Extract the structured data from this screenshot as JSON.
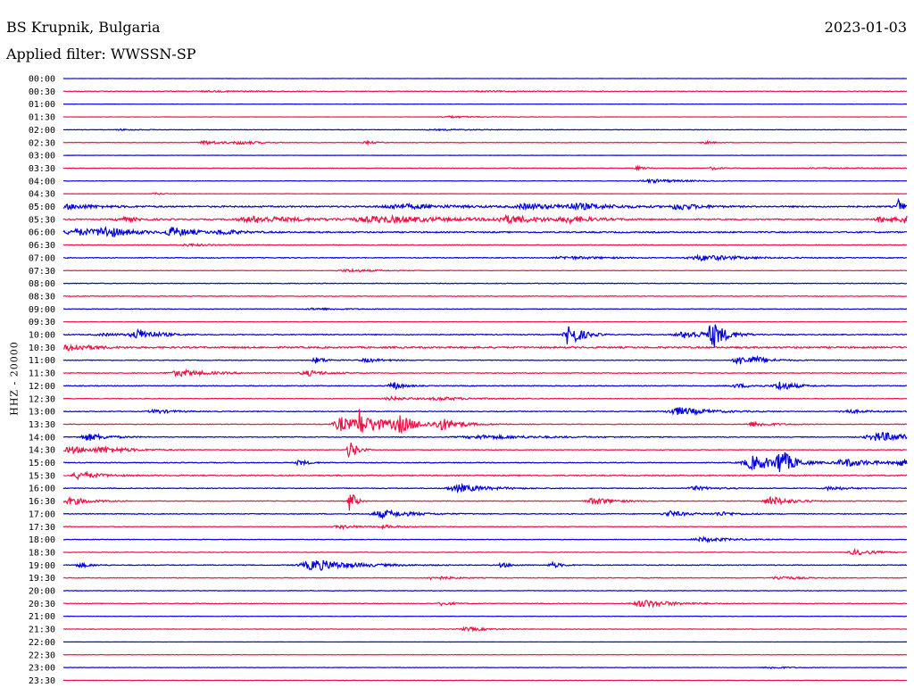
{
  "header": {
    "station": "BS Krupnik, Bulgaria",
    "date": "2023-01-03",
    "filter": "Applied filter: WWSSN-SP",
    "channel": "HHZ - 20000"
  },
  "colors": {
    "blue": "#0000dd",
    "red": "#ee1144"
  },
  "chart_data": {
    "type": "line",
    "title": "BS Krupnik, Bulgaria",
    "subtitle": "Applied filter: WWSSN-SP",
    "ylabel": "HHZ - 20000",
    "date": "2023-01-03",
    "series": [
      {
        "time": "00:00",
        "color": "blue",
        "level": 0.3,
        "events": []
      },
      {
        "time": "00:30",
        "color": "red",
        "level": 1.0,
        "events": [
          [
            0.18,
            0.6,
            0.05
          ],
          [
            0.5,
            0.5,
            0.04
          ]
        ]
      },
      {
        "time": "01:00",
        "color": "blue",
        "level": 0.3,
        "events": []
      },
      {
        "time": "01:30",
        "color": "red",
        "level": 0.4,
        "events": [
          [
            0.46,
            1.0,
            0.03
          ]
        ]
      },
      {
        "time": "02:00",
        "color": "blue",
        "level": 0.6,
        "events": [
          [
            0.07,
            0.8,
            0.02
          ],
          [
            0.45,
            0.6,
            0.05
          ]
        ]
      },
      {
        "time": "02:30",
        "color": "red",
        "level": 0.8,
        "events": [
          [
            0.17,
            2.0,
            0.02
          ],
          [
            0.21,
            1.8,
            0.02
          ],
          [
            0.36,
            1.6,
            0.01
          ],
          [
            0.76,
            1.4,
            0.01
          ]
        ]
      },
      {
        "time": "03:00",
        "color": "blue",
        "level": 0.3,
        "events": []
      },
      {
        "time": "03:30",
        "color": "red",
        "level": 0.7,
        "events": [
          [
            0.68,
            1.8,
            0.01
          ],
          [
            0.77,
            1.6,
            0.01
          ],
          [
            0.9,
            0.6,
            0.05
          ]
        ]
      },
      {
        "time": "04:00",
        "color": "blue",
        "level": 0.5,
        "events": [
          [
            0.7,
            1.8,
            0.04
          ]
        ]
      },
      {
        "time": "04:30",
        "color": "red",
        "level": 0.4,
        "events": [
          [
            0.11,
            1.2,
            0.01
          ]
        ]
      },
      {
        "time": "05:00",
        "color": "blue",
        "level": 2.2,
        "events": [
          [
            0.01,
            2.5,
            0.03
          ],
          [
            0.4,
            2.5,
            0.05
          ],
          [
            0.55,
            3.0,
            0.03
          ],
          [
            0.61,
            3.0,
            0.04
          ],
          [
            0.73,
            3.5,
            0.02
          ],
          [
            0.99,
            8.0,
            0.005
          ]
        ]
      },
      {
        "time": "05:30",
        "color": "red",
        "level": 1.8,
        "events": [
          [
            0.07,
            2.5,
            0.02
          ],
          [
            0.23,
            3.5,
            0.05
          ],
          [
            0.38,
            3.5,
            0.08
          ],
          [
            0.53,
            3.5,
            0.04
          ],
          [
            0.6,
            3.0,
            0.02
          ],
          [
            0.97,
            3.0,
            0.02
          ],
          [
            0.995,
            8.0,
            0.005
          ]
        ]
      },
      {
        "time": "06:00",
        "color": "blue",
        "level": 2.0,
        "events": [
          [
            0.02,
            3.5,
            0.04
          ],
          [
            0.05,
            4.5,
            0.02
          ],
          [
            0.13,
            5.0,
            0.02
          ],
          [
            0.19,
            2.5,
            0.02
          ]
        ]
      },
      {
        "time": "06:30",
        "color": "red",
        "level": 1.0,
        "events": [
          [
            0.15,
            1.2,
            0.03
          ]
        ]
      },
      {
        "time": "07:00",
        "color": "blue",
        "level": 1.2,
        "events": [
          [
            0.6,
            1.5,
            0.04
          ],
          [
            0.76,
            3.0,
            0.04
          ]
        ]
      },
      {
        "time": "07:30",
        "color": "red",
        "level": 0.6,
        "events": [
          [
            0.34,
            1.6,
            0.03
          ]
        ]
      },
      {
        "time": "08:00",
        "color": "blue",
        "level": 1.0,
        "events": []
      },
      {
        "time": "08:30",
        "color": "red",
        "level": 1.0,
        "events": []
      },
      {
        "time": "09:00",
        "color": "blue",
        "level": 0.8,
        "events": [
          [
            0.3,
            1.0,
            0.03
          ]
        ]
      },
      {
        "time": "09:30",
        "color": "red",
        "level": 0.6,
        "events": []
      },
      {
        "time": "10:00",
        "color": "blue",
        "level": 1.4,
        "events": [
          [
            0.05,
            1.2,
            0.03
          ],
          [
            0.09,
            5.5,
            0.02
          ],
          [
            0.6,
            14,
            0.012
          ],
          [
            0.77,
            14,
            0.012
          ],
          [
            0.74,
            4.0,
            0.03
          ]
        ]
      },
      {
        "time": "10:30",
        "color": "red",
        "level": 2.5,
        "events": [
          [
            0.01,
            4.0,
            0.02
          ]
        ]
      },
      {
        "time": "11:00",
        "color": "blue",
        "level": 1.0,
        "events": [
          [
            0.3,
            3.5,
            0.01
          ],
          [
            0.36,
            2.0,
            0.02
          ],
          [
            0.8,
            5.5,
            0.012
          ],
          [
            0.82,
            3.0,
            0.02
          ]
        ]
      },
      {
        "time": "11:30",
        "color": "red",
        "level": 1.2,
        "events": [
          [
            0.14,
            3.5,
            0.03
          ],
          [
            0.29,
            3.0,
            0.02
          ]
        ]
      },
      {
        "time": "12:00",
        "color": "blue",
        "level": 1.2,
        "events": [
          [
            0.39,
            5.0,
            0.01
          ],
          [
            0.85,
            5.0,
            0.015
          ],
          [
            0.8,
            2.0,
            0.02
          ]
        ]
      },
      {
        "time": "12:30",
        "color": "red",
        "level": 1.0,
        "events": [
          [
            0.39,
            2.0,
            0.02
          ],
          [
            0.45,
            1.5,
            0.04
          ]
        ]
      },
      {
        "time": "13:00",
        "color": "blue",
        "level": 1.2,
        "events": [
          [
            0.11,
            2.0,
            0.02
          ],
          [
            0.73,
            4.5,
            0.03
          ],
          [
            0.93,
            2.0,
            0.02
          ]
        ]
      },
      {
        "time": "13:30",
        "color": "red",
        "level": 1.0,
        "events": [
          [
            0.33,
            8.0,
            0.02
          ],
          [
            0.35,
            18,
            0.006
          ],
          [
            0.37,
            6.0,
            0.02
          ],
          [
            0.4,
            8.0,
            0.02
          ],
          [
            0.45,
            6.0,
            0.02
          ],
          [
            0.82,
            2.5,
            0.02
          ]
        ]
      },
      {
        "time": "14:00",
        "color": "blue",
        "level": 1.2,
        "events": [
          [
            0.03,
            4.0,
            0.02
          ],
          [
            0.5,
            2.0,
            0.06
          ],
          [
            0.97,
            5.0,
            0.04
          ]
        ]
      },
      {
        "time": "14:30",
        "color": "red",
        "level": 1.0,
        "events": [
          [
            0.01,
            4.0,
            0.02
          ],
          [
            0.05,
            3.0,
            0.03
          ],
          [
            0.34,
            12,
            0.007
          ]
        ]
      },
      {
        "time": "15:00",
        "color": "blue",
        "level": 1.2,
        "events": [
          [
            0.28,
            3.0,
            0.01
          ],
          [
            0.82,
            8.0,
            0.03
          ],
          [
            0.85,
            14,
            0.01
          ],
          [
            0.93,
            4.0,
            0.03
          ],
          [
            0.99,
            4.0,
            0.01
          ]
        ]
      },
      {
        "time": "15:30",
        "color": "red",
        "level": 1.6,
        "events": [
          [
            0.02,
            4.0,
            0.02
          ]
        ]
      },
      {
        "time": "16:00",
        "color": "blue",
        "level": 1.2,
        "events": [
          [
            0.47,
            4.0,
            0.03
          ],
          [
            0.75,
            2.0,
            0.02
          ],
          [
            0.91,
            2.0,
            0.02
          ]
        ]
      },
      {
        "time": "16:30",
        "color": "red",
        "level": 1.0,
        "events": [
          [
            0.01,
            4.0,
            0.02
          ],
          [
            0.34,
            14,
            0.005
          ],
          [
            0.63,
            4.0,
            0.02
          ],
          [
            0.84,
            5.0,
            0.02
          ]
        ]
      },
      {
        "time": "17:00",
        "color": "blue",
        "level": 1.2,
        "events": [
          [
            0.38,
            4.0,
            0.03
          ],
          [
            0.72,
            3.0,
            0.02
          ],
          [
            0.78,
            2.0,
            0.02
          ]
        ]
      },
      {
        "time": "17:30",
        "color": "red",
        "level": 0.8,
        "events": [
          [
            0.33,
            2.0,
            0.02
          ],
          [
            0.38,
            1.5,
            0.02
          ]
        ]
      },
      {
        "time": "18:00",
        "color": "blue",
        "level": 0.8,
        "events": [
          [
            0.76,
            2.5,
            0.03
          ]
        ]
      },
      {
        "time": "18:30",
        "color": "red",
        "level": 0.8,
        "events": [
          [
            0.94,
            3.0,
            0.02
          ]
        ]
      },
      {
        "time": "19:00",
        "color": "blue",
        "level": 1.2,
        "events": [
          [
            0.02,
            3.0,
            0.01
          ],
          [
            0.3,
            6.0,
            0.04
          ],
          [
            0.52,
            2.5,
            0.01
          ],
          [
            0.58,
            3.0,
            0.01
          ]
        ]
      },
      {
        "time": "19:30",
        "color": "red",
        "level": 1.0,
        "events": [
          [
            0.44,
            2.0,
            0.02
          ],
          [
            0.85,
            2.0,
            0.02
          ]
        ]
      },
      {
        "time": "20:00",
        "color": "blue",
        "level": 0.8,
        "events": []
      },
      {
        "time": "20:30",
        "color": "red",
        "level": 1.0,
        "events": [
          [
            0.45,
            2.5,
            0.01
          ],
          [
            0.69,
            4.0,
            0.03
          ]
        ]
      },
      {
        "time": "21:00",
        "color": "blue",
        "level": 0.6,
        "events": []
      },
      {
        "time": "21:30",
        "color": "red",
        "level": 0.8,
        "events": [
          [
            0.48,
            2.0,
            0.02
          ]
        ]
      },
      {
        "time": "22:00",
        "color": "blue",
        "level": 0.3,
        "events": []
      },
      {
        "time": "22:30",
        "color": "red",
        "level": 0.6,
        "events": []
      },
      {
        "time": "23:00",
        "color": "blue",
        "level": 0.6,
        "events": [
          [
            0.84,
            1.2,
            0.02
          ]
        ]
      },
      {
        "time": "23:30",
        "color": "red",
        "level": 0.5,
        "events": []
      }
    ]
  }
}
